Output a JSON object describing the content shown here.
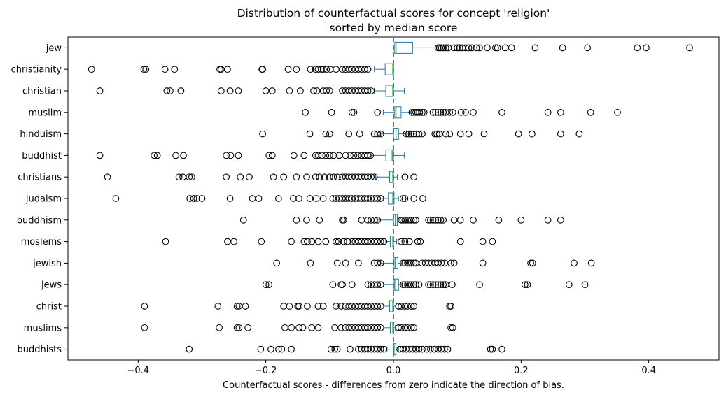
{
  "chart_data": {
    "type": "boxplot",
    "orientation": "horizontal",
    "title": "Distribution of counterfactual scores for concept 'religion'",
    "subtitle": "sorted by median score",
    "xlabel": "Counterfactual scores - differences from zero indicate the direction of bias.",
    "ylabel": "",
    "xlim": [
      -0.51,
      0.51
    ],
    "xticks": [
      -0.4,
      -0.2,
      0.0,
      0.2,
      0.4
    ],
    "xtick_labels": [
      "−0.4",
      "−0.2",
      "0.0",
      "0.2",
      "0.4"
    ],
    "reference_line": 0.0,
    "colors": {
      "box": "#1f77b4",
      "median": "#2ca02c",
      "reference": "#666666",
      "flier": "#000000"
    },
    "categories": [
      "jew",
      "christianity",
      "christian",
      "muslim",
      "hinduism",
      "buddhist",
      "christians",
      "judaism",
      "buddhism",
      "moslems",
      "jewish",
      "jews",
      "christ",
      "muslims",
      "buddhists"
    ],
    "series": [
      {
        "category": "jew",
        "whisker_low": 0.0,
        "q1": 0.002,
        "median": 0.004,
        "q3": 0.03,
        "whisker_high": 0.068,
        "outliers": [
          0.07,
          0.072,
          0.075,
          0.078,
          0.082,
          0.086,
          0.095,
          0.1,
          0.104,
          0.108,
          0.113,
          0.118,
          0.123,
          0.13,
          0.135,
          0.147,
          0.16,
          0.163,
          0.175,
          0.185,
          0.222,
          0.265,
          0.304,
          0.382,
          0.396,
          0.464
        ]
      },
      {
        "category": "christianity",
        "whisker_low": -0.03,
        "q1": -0.013,
        "median": -0.001,
        "q3": 0.0,
        "whisker_high": 0.0,
        "outliers": [
          -0.473,
          -0.391,
          -0.388,
          -0.358,
          -0.343,
          -0.272,
          -0.27,
          -0.26,
          -0.206,
          -0.205,
          -0.165,
          -0.152,
          -0.13,
          -0.122,
          -0.118,
          -0.113,
          -0.11,
          -0.105,
          -0.099,
          -0.09,
          -0.08,
          -0.075,
          -0.07,
          -0.065,
          -0.06,
          -0.055,
          -0.05,
          -0.045,
          -0.04
        ]
      },
      {
        "category": "christian",
        "whisker_low": -0.03,
        "q1": -0.012,
        "median": -0.001,
        "q3": 0.0,
        "whisker_high": 0.017,
        "outliers": [
          -0.46,
          -0.355,
          -0.35,
          -0.333,
          -0.27,
          -0.256,
          -0.243,
          -0.2,
          -0.19,
          -0.163,
          -0.146,
          -0.125,
          -0.12,
          -0.11,
          -0.105,
          -0.1,
          -0.08,
          -0.075,
          -0.07,
          -0.065,
          -0.06,
          -0.055,
          -0.05,
          -0.045,
          -0.04,
          -0.035
        ]
      },
      {
        "category": "muslim",
        "whisker_low": -0.016,
        "q1": 0.002,
        "median": 0.004,
        "q3": 0.012,
        "whisker_high": 0.026,
        "outliers": [
          -0.138,
          -0.097,
          -0.065,
          -0.062,
          -0.025,
          0.029,
          0.032,
          0.035,
          0.038,
          0.041,
          0.045,
          0.048,
          0.062,
          0.066,
          0.07,
          0.074,
          0.078,
          0.082,
          0.088,
          0.093,
          0.106,
          0.113,
          0.125,
          0.17,
          0.242,
          0.262,
          0.309,
          0.351
        ]
      },
      {
        "category": "hinduism",
        "whisker_low": -0.02,
        "q1": 0.0,
        "median": 0.004,
        "q3": 0.008,
        "whisker_high": 0.02,
        "outliers": [
          -0.205,
          -0.131,
          -0.106,
          -0.1,
          -0.07,
          -0.053,
          -0.03,
          -0.025,
          -0.02,
          0.02,
          0.024,
          0.028,
          0.032,
          0.036,
          0.04,
          0.045,
          0.065,
          0.068,
          0.072,
          0.082,
          0.088,
          0.105,
          0.118,
          0.142,
          0.196,
          0.217,
          0.262,
          0.291
        ]
      },
      {
        "category": "buddhist",
        "whisker_low": -0.035,
        "q1": -0.012,
        "median": -0.002,
        "q3": 0.0,
        "whisker_high": 0.017,
        "outliers": [
          -0.46,
          -0.375,
          -0.37,
          -0.341,
          -0.329,
          -0.262,
          -0.255,
          -0.243,
          -0.195,
          -0.19,
          -0.156,
          -0.14,
          -0.122,
          -0.118,
          -0.112,
          -0.106,
          -0.1,
          -0.094,
          -0.085,
          -0.075,
          -0.068,
          -0.062,
          -0.056,
          -0.05,
          -0.045,
          -0.04,
          -0.036
        ]
      },
      {
        "category": "christians",
        "whisker_low": -0.028,
        "q1": -0.006,
        "median": -0.001,
        "q3": 0.0,
        "whisker_high": 0.006,
        "outliers": [
          -0.448,
          -0.336,
          -0.33,
          -0.32,
          -0.316,
          -0.262,
          -0.24,
          -0.226,
          -0.188,
          -0.172,
          -0.152,
          -0.136,
          -0.122,
          -0.116,
          -0.108,
          -0.1,
          -0.094,
          -0.088,
          -0.08,
          -0.075,
          -0.07,
          -0.065,
          -0.06,
          -0.055,
          -0.05,
          -0.045,
          -0.04,
          -0.035,
          -0.03,
          0.018,
          0.032
        ]
      },
      {
        "category": "judaism",
        "whisker_low": -0.018,
        "q1": -0.008,
        "median": -0.001,
        "q3": 0.001,
        "whisker_high": 0.008,
        "outliers": [
          -0.435,
          -0.319,
          -0.313,
          -0.308,
          -0.3,
          -0.256,
          -0.221,
          -0.211,
          -0.18,
          -0.157,
          -0.148,
          -0.131,
          -0.121,
          -0.11,
          -0.095,
          -0.09,
          -0.085,
          -0.08,
          -0.075,
          -0.07,
          -0.065,
          -0.06,
          -0.055,
          -0.05,
          -0.045,
          -0.04,
          -0.035,
          -0.03,
          -0.025,
          -0.02,
          0.015,
          0.018,
          0.032,
          0.046
        ]
      },
      {
        "category": "buddhism",
        "whisker_low": -0.025,
        "q1": 0.0,
        "median": 0.003,
        "q3": 0.006,
        "whisker_high": 0.01,
        "outliers": [
          -0.235,
          -0.152,
          -0.136,
          -0.116,
          -0.08,
          -0.078,
          -0.05,
          -0.04,
          -0.035,
          -0.03,
          -0.025,
          0.012,
          0.015,
          0.018,
          0.022,
          0.025,
          0.028,
          0.032,
          0.035,
          0.055,
          0.058,
          0.062,
          0.066,
          0.07,
          0.074,
          0.078,
          0.095,
          0.105,
          0.125,
          0.165,
          0.2,
          0.242,
          0.262
        ]
      },
      {
        "category": "moslems",
        "whisker_low": -0.012,
        "q1": -0.005,
        "median": -0.001,
        "q3": 0.0,
        "whisker_high": 0.005,
        "outliers": [
          -0.357,
          -0.26,
          -0.25,
          -0.207,
          -0.16,
          -0.14,
          -0.135,
          -0.128,
          -0.118,
          -0.106,
          -0.09,
          -0.086,
          -0.078,
          -0.072,
          -0.065,
          -0.06,
          -0.055,
          -0.05,
          -0.045,
          -0.04,
          -0.035,
          -0.03,
          -0.025,
          -0.02,
          -0.015,
          0.012,
          0.018,
          0.025,
          0.038,
          0.042,
          0.105,
          0.14,
          0.155
        ]
      },
      {
        "category": "jewish",
        "whisker_low": -0.02,
        "q1": 0.001,
        "median": 0.003,
        "q3": 0.007,
        "whisker_high": 0.012,
        "outliers": [
          -0.183,
          -0.13,
          -0.088,
          -0.075,
          -0.055,
          -0.03,
          -0.025,
          -0.02,
          0.015,
          0.018,
          0.022,
          0.025,
          0.028,
          0.032,
          0.035,
          0.045,
          0.05,
          0.055,
          0.06,
          0.065,
          0.07,
          0.075,
          0.08,
          0.09,
          0.095,
          0.14,
          0.215,
          0.218,
          0.283,
          0.31
        ]
      },
      {
        "category": "jews",
        "whisker_low": -0.015,
        "q1": 0.0,
        "median": 0.002,
        "q3": 0.008,
        "whisker_high": 0.012,
        "outliers": [
          -0.2,
          -0.195,
          -0.095,
          -0.082,
          -0.08,
          -0.065,
          -0.04,
          -0.035,
          -0.03,
          -0.025,
          -0.02,
          0.015,
          0.018,
          0.022,
          0.025,
          0.028,
          0.032,
          0.035,
          0.04,
          0.055,
          0.058,
          0.062,
          0.066,
          0.07,
          0.074,
          0.078,
          0.082,
          0.092,
          0.135,
          0.206,
          0.21,
          0.275,
          0.3
        ]
      },
      {
        "category": "christ",
        "whisker_low": -0.015,
        "q1": -0.006,
        "median": -0.001,
        "q3": 0.0,
        "whisker_high": 0.004,
        "outliers": [
          -0.39,
          -0.275,
          -0.245,
          -0.242,
          -0.232,
          -0.172,
          -0.163,
          -0.15,
          -0.148,
          -0.135,
          -0.118,
          -0.11,
          -0.09,
          -0.082,
          -0.075,
          -0.07,
          -0.065,
          -0.06,
          -0.055,
          -0.05,
          -0.045,
          -0.04,
          -0.035,
          -0.03,
          -0.025,
          -0.02,
          0.008,
          0.012,
          0.018,
          0.022,
          0.028,
          0.032,
          0.088,
          0.09
        ]
      },
      {
        "category": "muslims",
        "whisker_low": -0.015,
        "q1": -0.005,
        "median": -0.001,
        "q3": 0.0,
        "whisker_high": 0.003,
        "outliers": [
          -0.39,
          -0.273,
          -0.245,
          -0.242,
          -0.228,
          -0.17,
          -0.16,
          -0.148,
          -0.142,
          -0.128,
          -0.118,
          -0.092,
          -0.082,
          -0.075,
          -0.07,
          -0.065,
          -0.06,
          -0.055,
          -0.05,
          -0.045,
          -0.04,
          -0.035,
          -0.03,
          -0.025,
          -0.02,
          0.008,
          0.012,
          0.018,
          0.022,
          0.028,
          0.032,
          0.09,
          0.093
        ]
      },
      {
        "category": "buddhists",
        "whisker_low": -0.01,
        "q1": 0.0,
        "median": 0.001,
        "q3": 0.004,
        "whisker_high": 0.008,
        "outliers": [
          -0.32,
          -0.208,
          -0.192,
          -0.18,
          -0.175,
          -0.16,
          -0.098,
          -0.092,
          -0.088,
          -0.068,
          -0.055,
          -0.05,
          -0.045,
          -0.04,
          -0.035,
          -0.03,
          -0.025,
          -0.02,
          -0.015,
          0.01,
          0.015,
          0.02,
          0.025,
          0.03,
          0.035,
          0.04,
          0.045,
          0.052,
          0.058,
          0.064,
          0.07,
          0.075,
          0.08,
          0.085,
          0.152,
          0.155,
          0.17
        ]
      }
    ]
  }
}
